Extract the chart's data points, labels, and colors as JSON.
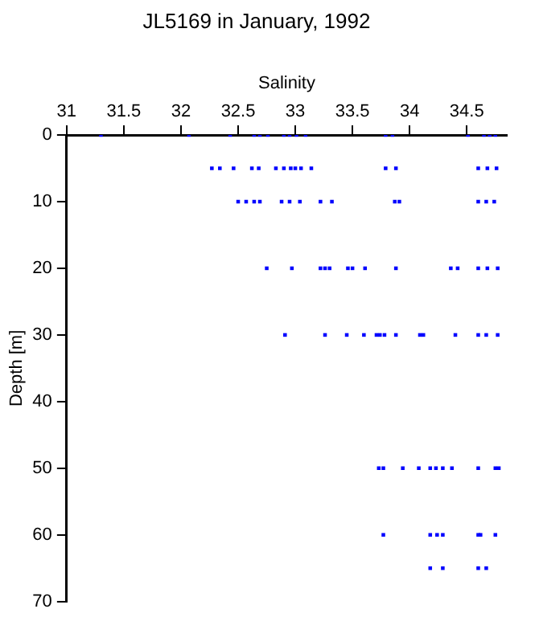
{
  "chart_data": {
    "type": "scatter",
    "title": "JL5169 in January, 1992",
    "xlabel": "Salinity",
    "ylabel": "Depth [m]",
    "x": [
      31.3,
      32.07,
      32.43,
      32.64,
      32.69,
      32.76,
      32.9,
      32.95,
      33.01,
      33.09,
      33.79,
      33.85,
      34.51,
      34.65,
      34.7,
      34.75,
      32.27,
      32.34,
      32.46,
      32.62,
      32.68,
      32.83,
      32.9,
      32.96,
      33.0,
      33.05,
      33.14,
      33.79,
      33.88,
      34.6,
      34.68,
      34.76,
      32.5,
      32.57,
      32.64,
      32.69,
      32.88,
      32.95,
      33.04,
      33.22,
      33.32,
      33.87,
      33.91,
      34.6,
      34.67,
      34.74,
      32.75,
      32.97,
      33.22,
      33.26,
      33.3,
      33.46,
      33.5,
      33.61,
      33.88,
      34.36,
      34.42,
      34.6,
      34.68,
      34.77,
      32.91,
      33.26,
      33.45,
      33.6,
      33.71,
      33.74,
      33.78,
      33.88,
      34.09,
      34.12,
      34.4,
      34.6,
      34.67,
      34.77,
      33.73,
      33.77,
      33.94,
      34.08,
      34.18,
      34.23,
      34.29,
      34.37,
      34.6,
      34.75,
      34.78,
      33.77,
      34.18,
      34.24,
      34.29,
      34.6,
      34.62,
      34.75,
      34.18,
      34.29,
      34.6,
      34.67
    ],
    "series": [
      {
        "color": "#0000ff",
        "values": [
          0,
          0,
          0,
          0,
          0,
          0,
          0,
          0,
          0,
          0,
          0,
          0,
          0,
          0,
          0,
          0,
          5,
          5,
          5,
          5,
          5,
          5,
          5,
          5,
          5,
          5,
          5,
          5,
          5,
          5,
          5,
          5,
          10,
          10,
          10,
          10,
          10,
          10,
          10,
          10,
          10,
          10,
          10,
          10,
          10,
          10,
          20,
          20,
          20,
          20,
          20,
          20,
          20,
          20,
          20,
          20,
          20,
          20,
          20,
          20,
          30,
          30,
          30,
          30,
          30,
          30,
          30,
          30,
          30,
          30,
          30,
          30,
          30,
          30,
          50,
          50,
          50,
          50,
          50,
          50,
          50,
          50,
          50,
          50,
          50,
          60,
          60,
          60,
          60,
          60,
          60,
          60,
          65,
          65,
          65,
          65
        ]
      }
    ],
    "xlim": [
      31,
      34.85
    ],
    "xticks": [
      31,
      31.5,
      32,
      32.5,
      33,
      33.5,
      34,
      34.5
    ],
    "ylim": [
      70,
      0
    ],
    "yticks": [
      0,
      10,
      20,
      30,
      40,
      50,
      60,
      70
    ],
    "grid": false,
    "legend": false,
    "marker": "square"
  }
}
